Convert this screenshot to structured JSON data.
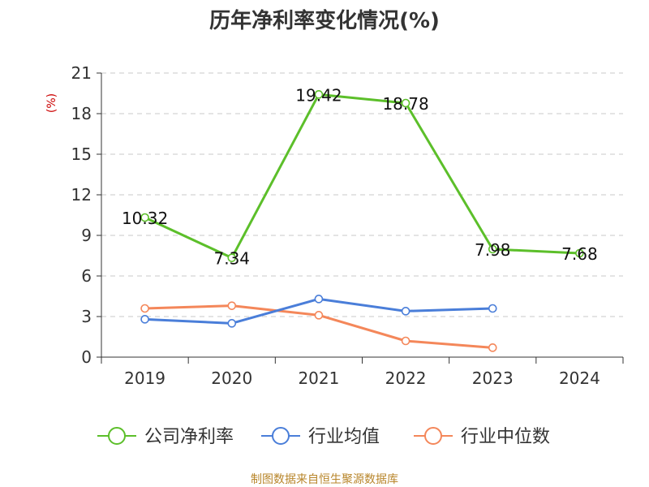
{
  "chart_data": {
    "type": "line",
    "title": "历年净利率变化情况(%)",
    "ylabel": "(%)",
    "categories": [
      "2019",
      "2020",
      "2021",
      "2022",
      "2023",
      "2024"
    ],
    "ylim": [
      0,
      21
    ],
    "yticks": [
      0,
      3,
      6,
      9,
      12,
      15,
      18,
      21
    ],
    "grid": true,
    "legend_position": "bottom",
    "series": [
      {
        "name": "公司净利率",
        "color": "#5cbf2a",
        "values": [
          10.32,
          7.34,
          19.42,
          18.78,
          7.98,
          7.68
        ],
        "labels": [
          "10.32",
          "7.34",
          "19.42",
          "18.78",
          "7.98",
          "7.68"
        ]
      },
      {
        "name": "行业均值",
        "color": "#4a7ed9",
        "values": [
          2.8,
          2.5,
          4.3,
          3.4,
          3.6,
          null
        ]
      },
      {
        "name": "行业中位数",
        "color": "#f4875a",
        "values": [
          3.6,
          3.8,
          3.1,
          1.2,
          0.7,
          null
        ]
      }
    ],
    "source": "制图数据来自恒生聚源数据库"
  }
}
